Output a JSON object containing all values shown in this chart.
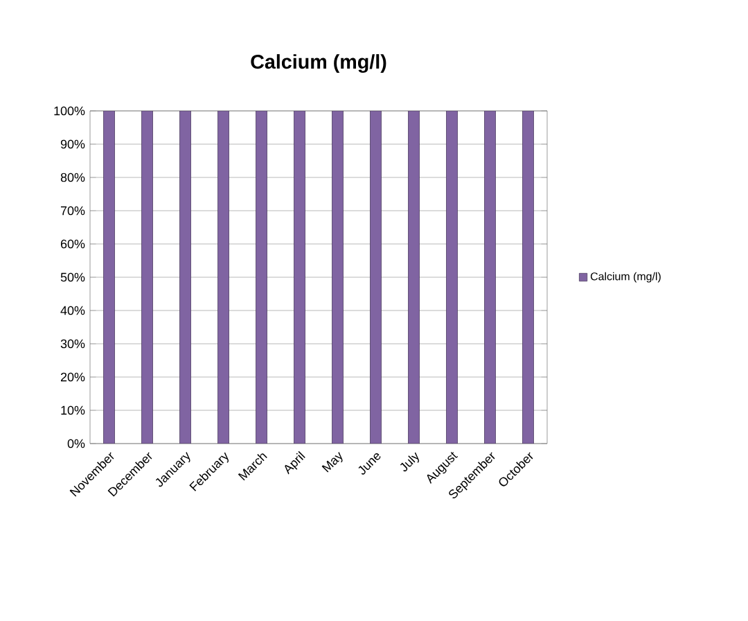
{
  "chart_data": {
    "type": "bar",
    "title": "Calcium (mg/l)",
    "categories": [
      "November",
      "December",
      "January",
      "February",
      "March",
      "April",
      "May",
      "June",
      "July",
      "August",
      "September",
      "October"
    ],
    "series": [
      {
        "name": "Calcium (mg/l)",
        "color": "#8064a2",
        "values": [
          100,
          100,
          100,
          100,
          100,
          100,
          100,
          100,
          100,
          100,
          100,
          100
        ]
      }
    ],
    "ylim": [
      0,
      100
    ],
    "yticks": [
      {
        "value": 0,
        "label": "0%"
      },
      {
        "value": 10,
        "label": "10%"
      },
      {
        "value": 20,
        "label": "20%"
      },
      {
        "value": 30,
        "label": "30%"
      },
      {
        "value": 40,
        "label": "40%"
      },
      {
        "value": 50,
        "label": "50%"
      },
      {
        "value": 60,
        "label": "60%"
      },
      {
        "value": 70,
        "label": "70%"
      },
      {
        "value": 80,
        "label": "80%"
      },
      {
        "value": 90,
        "label": "90%"
      },
      {
        "value": 100,
        "label": "100%"
      }
    ],
    "grid": "y",
    "legend": "right"
  }
}
